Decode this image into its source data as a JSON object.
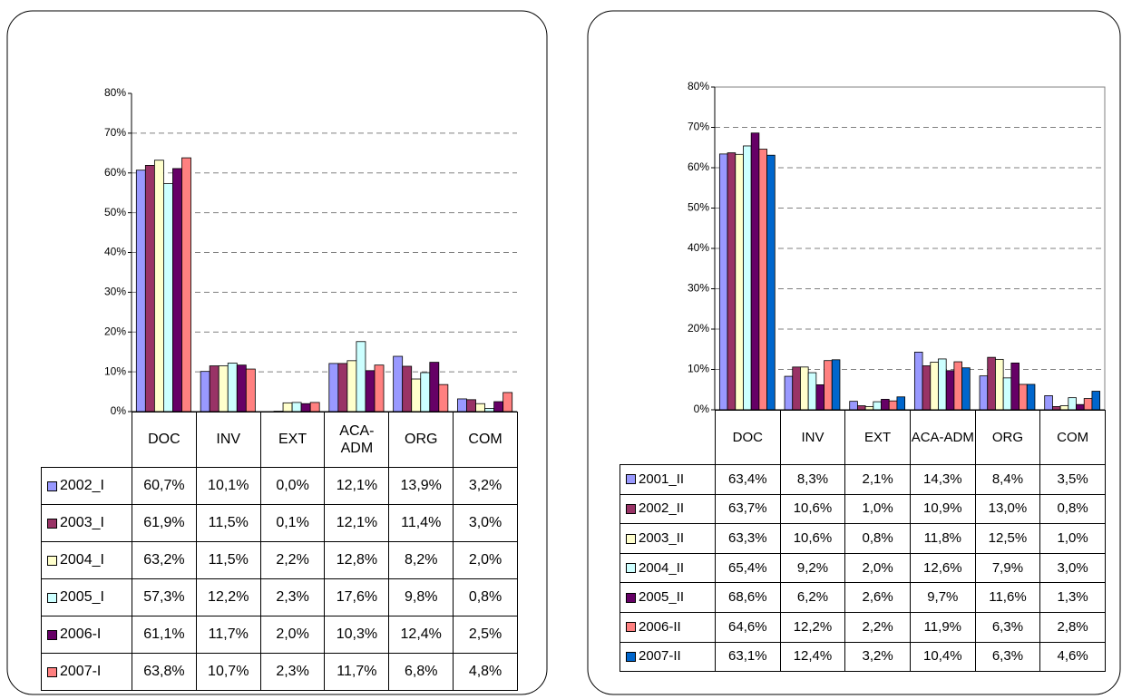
{
  "chart_data": [
    {
      "type": "bar",
      "categories": [
        "DOC",
        "INV",
        "EXT",
        "ACA-ADM",
        "ORG",
        "COM"
      ],
      "ylim": [
        0,
        80
      ],
      "yticks": [
        {
          "value": 0,
          "label": "0%"
        },
        {
          "value": 10,
          "label": "10%"
        },
        {
          "value": 20,
          "label": "20%"
        },
        {
          "value": 30,
          "label": "30%"
        },
        {
          "value": 40,
          "label": "40%"
        },
        {
          "value": 50,
          "label": "50%"
        },
        {
          "value": 60,
          "label": "60%"
        },
        {
          "value": 70,
          "label": "70%"
        },
        {
          "value": 80,
          "label": "80%"
        }
      ],
      "grid": true,
      "series": [
        {
          "name": "2002_I",
          "color": "#9999ff",
          "values": [
            60.7,
            10.1,
            0.0,
            12.1,
            13.9,
            3.2
          ],
          "value_labels": [
            "60,7%",
            "10,1%",
            "0,0%",
            "12,1%",
            "13,9%",
            "3,2%"
          ]
        },
        {
          "name": "2003_I",
          "color": "#993366",
          "values": [
            61.9,
            11.5,
            0.1,
            12.1,
            11.4,
            3.0
          ],
          "value_labels": [
            "61,9%",
            "11,5%",
            "0,1%",
            "12,1%",
            "11,4%",
            "3,0%"
          ]
        },
        {
          "name": "2004_I",
          "color": "#ffffcc",
          "values": [
            63.2,
            11.5,
            2.2,
            12.8,
            8.2,
            2.0
          ],
          "value_labels": [
            "63,2%",
            "11,5%",
            "2,2%",
            "12,8%",
            "8,2%",
            "2,0%"
          ]
        },
        {
          "name": "2005_I",
          "color": "#ccffff",
          "values": [
            57.3,
            12.2,
            2.3,
            17.6,
            9.8,
            0.8
          ],
          "value_labels": [
            "57,3%",
            "12,2%",
            "2,3%",
            "17,6%",
            "9,8%",
            "0,8%"
          ]
        },
        {
          "name": "2006-I",
          "color": "#660066",
          "values": [
            61.1,
            11.7,
            2.0,
            10.3,
            12.4,
            2.5
          ],
          "value_labels": [
            "61,1%",
            "11,7%",
            "2,0%",
            "10,3%",
            "12,4%",
            "2,5%"
          ]
        },
        {
          "name": "2007-I",
          "color": "#ff8080",
          "values": [
            63.8,
            10.7,
            2.3,
            11.7,
            6.8,
            4.8
          ],
          "value_labels": [
            "63,8%",
            "10,7%",
            "2,3%",
            "11,7%",
            "6,8%",
            "4,8%"
          ]
        }
      ]
    },
    {
      "type": "bar",
      "categories": [
        "DOC",
        "INV",
        "EXT",
        "ACA-ADM",
        "ORG",
        "COM"
      ],
      "ylim": [
        0,
        80
      ],
      "yticks": [
        {
          "value": 0,
          "label": "0%"
        },
        {
          "value": 10,
          "label": "10%"
        },
        {
          "value": 20,
          "label": "20%"
        },
        {
          "value": 30,
          "label": "30%"
        },
        {
          "value": 40,
          "label": "40%"
        },
        {
          "value": 50,
          "label": "50%"
        },
        {
          "value": 60,
          "label": "60%"
        },
        {
          "value": 70,
          "label": "70%"
        },
        {
          "value": 80,
          "label": "80%"
        }
      ],
      "grid": true,
      "series": [
        {
          "name": "2001_II",
          "color": "#9999ff",
          "values": [
            63.4,
            8.3,
            2.1,
            14.3,
            8.4,
            3.5
          ],
          "value_labels": [
            "63,4%",
            "8,3%",
            "2,1%",
            "14,3%",
            "8,4%",
            "3,5%"
          ]
        },
        {
          "name": "2002_II",
          "color": "#993366",
          "values": [
            63.7,
            10.6,
            1.0,
            10.9,
            13.0,
            0.8
          ],
          "value_labels": [
            "63,7%",
            "10,6%",
            "1,0%",
            "10,9%",
            "13,0%",
            "0,8%"
          ]
        },
        {
          "name": "2003_II",
          "color": "#ffffcc",
          "values": [
            63.3,
            10.6,
            0.8,
            11.8,
            12.5,
            1.0
          ],
          "value_labels": [
            "63,3%",
            "10,6%",
            "0,8%",
            "11,8%",
            "12,5%",
            "1,0%"
          ]
        },
        {
          "name": "2004_II",
          "color": "#ccffff",
          "values": [
            65.4,
            9.2,
            2.0,
            12.6,
            7.9,
            3.0
          ],
          "value_labels": [
            "65,4%",
            "9,2%",
            "2,0%",
            "12,6%",
            "7,9%",
            "3,0%"
          ]
        },
        {
          "name": "2005_II",
          "color": "#660066",
          "values": [
            68.6,
            6.2,
            2.6,
            9.7,
            11.6,
            1.3
          ],
          "value_labels": [
            "68,6%",
            "6,2%",
            "2,6%",
            "9,7%",
            "11,6%",
            "1,3%"
          ]
        },
        {
          "name": "2006-II",
          "color": "#ff8080",
          "values": [
            64.6,
            12.2,
            2.2,
            11.9,
            6.3,
            2.8
          ],
          "value_labels": [
            "64,6%",
            "12,2%",
            "2,2%",
            "11,9%",
            "6,3%",
            "2,8%"
          ]
        },
        {
          "name": "2007-II",
          "color": "#0066cc",
          "values": [
            63.1,
            12.4,
            3.2,
            10.4,
            6.3,
            4.6
          ],
          "value_labels": [
            "63,1%",
            "12,4%",
            "3,2%",
            "10,4%",
            "6,3%",
            "4,6%"
          ]
        }
      ]
    }
  ]
}
